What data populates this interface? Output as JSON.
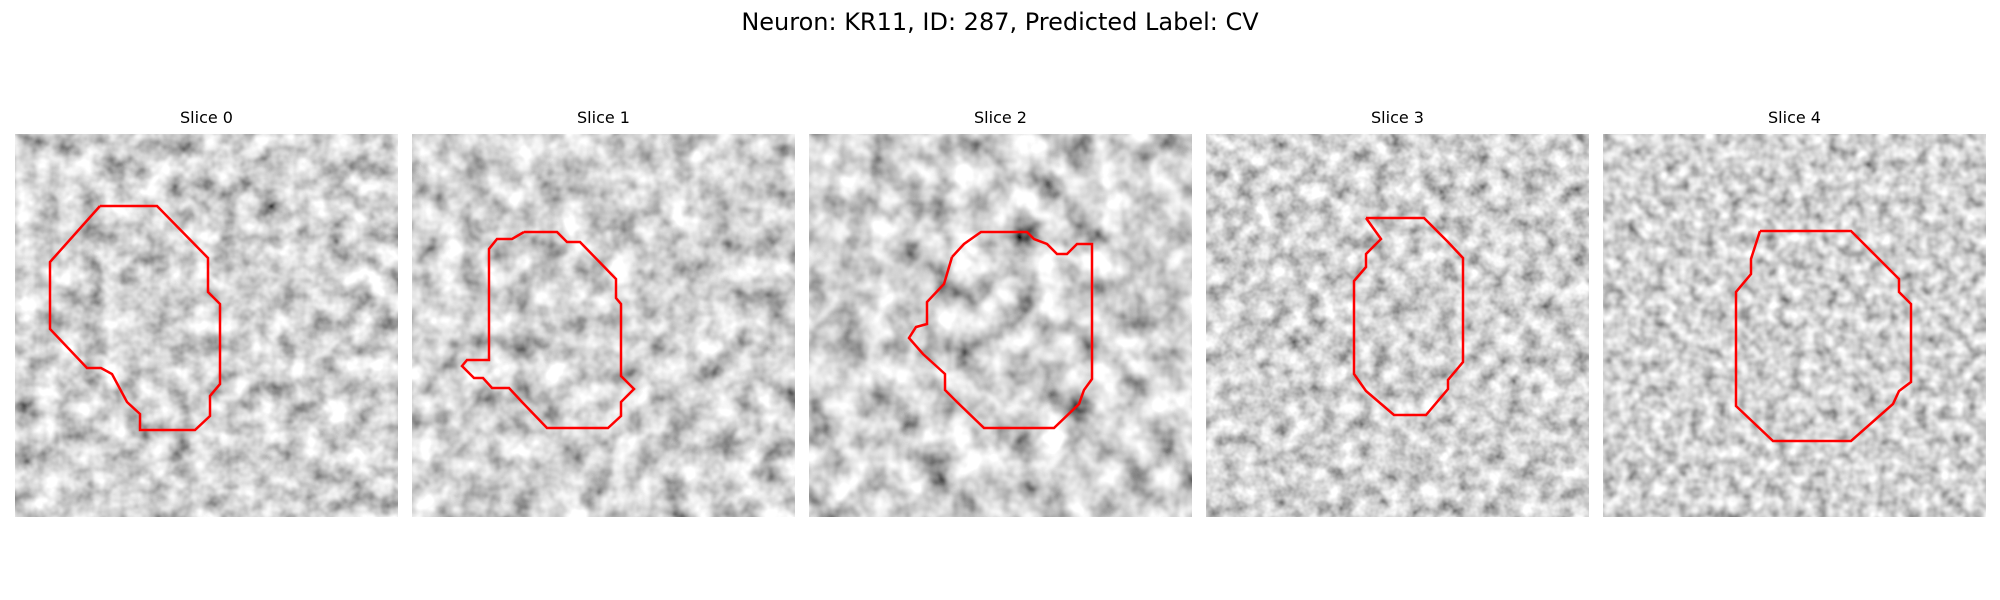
{
  "figure": {
    "title": "Neuron: KR11, ID: 287, Predicted Label: CV"
  },
  "colors": {
    "contour": "#ff0000",
    "background": "#ffffff"
  },
  "panels": [
    {
      "title": "Slice 0"
    },
    {
      "title": "Slice 1"
    },
    {
      "title": "Slice 2"
    },
    {
      "title": "Slice 3"
    },
    {
      "title": "Slice 4"
    }
  ]
}
